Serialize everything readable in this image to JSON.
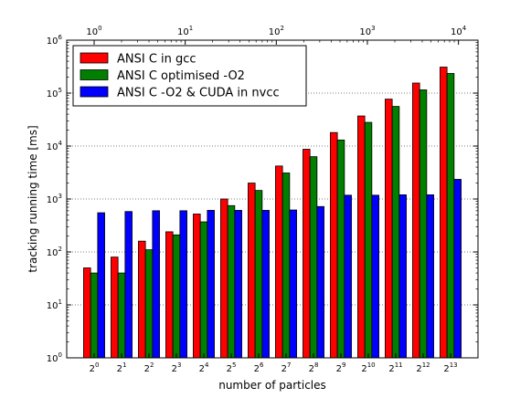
{
  "chart_data": {
    "type": "bar",
    "xlabel": "number of particles",
    "ylabel": "tracking running time [ms]",
    "yscale": "log",
    "ylim": [
      1,
      1000000
    ],
    "grid": "y-major-dotted",
    "legend_position": "top-left",
    "categories": [
      "0",
      "1",
      "2",
      "3",
      "4",
      "5",
      "6",
      "7",
      "8",
      "9",
      "10",
      "11",
      "12",
      "13"
    ],
    "category_base": "2",
    "y_tick_exponents": [
      "0",
      "1",
      "2",
      "3",
      "4",
      "5",
      "6"
    ],
    "y_tick_base": "10",
    "top_axis": {
      "scale": "log",
      "base": "10",
      "tick_exponents": [
        "0",
        "1",
        "2",
        "3",
        "4"
      ]
    },
    "series": [
      {
        "name": "ANSI C in gcc",
        "color": "#ff0000",
        "values": [
          50,
          80,
          160,
          240,
          520,
          1000,
          2000,
          4200,
          8700,
          18000,
          37000,
          77000,
          155000,
          310000
        ]
      },
      {
        "name": "ANSI C optimised -O2",
        "color": "#007f00",
        "values": [
          40,
          40,
          110,
          210,
          370,
          750,
          1450,
          3100,
          6300,
          13000,
          28000,
          56000,
          115000,
          235000
        ]
      },
      {
        "name": "ANSI C -O2 & CUDA in nvcc",
        "color": "#0000ff",
        "values": [
          550,
          580,
          600,
          600,
          610,
          610,
          610,
          620,
          720,
          1180,
          1180,
          1200,
          1200,
          2350
        ]
      }
    ]
  }
}
